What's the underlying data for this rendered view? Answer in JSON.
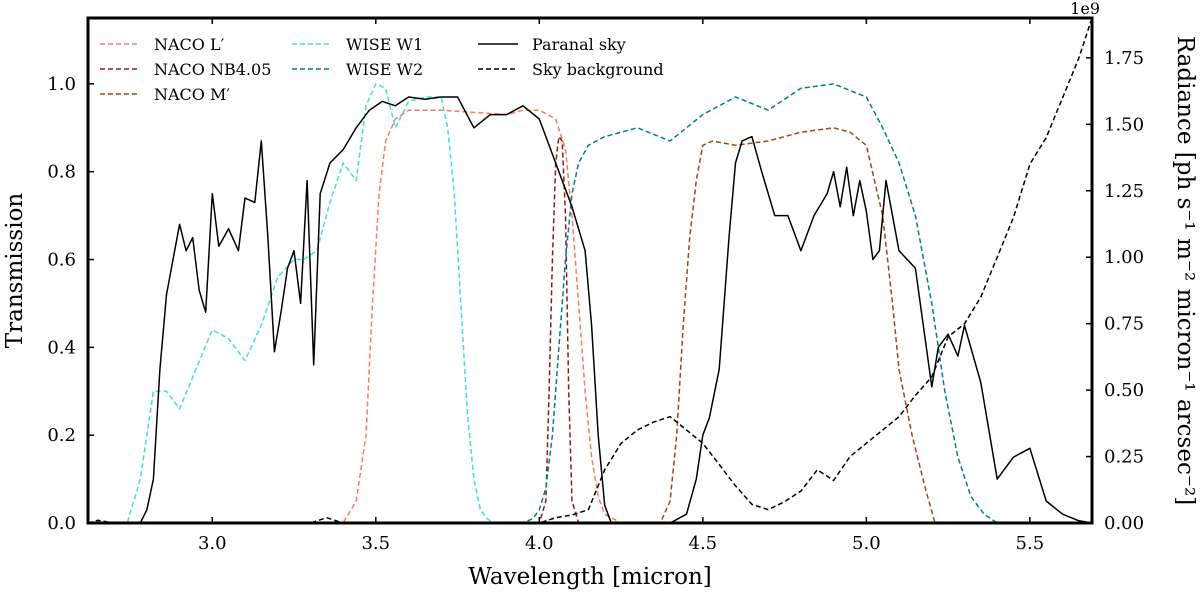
{
  "chart_data": {
    "type": "line",
    "title": "",
    "xlabel": "Wavelength [micron]",
    "ylabel": "Transmission",
    "y2label": "Radiance [ph s⁻¹ m⁻² micron⁻¹ arcsec⁻²]",
    "y2_offset_text": "1e9",
    "xlim": [
      2.62,
      5.69
    ],
    "ylim": [
      0,
      1.15
    ],
    "y2lim": [
      0,
      1.9
    ],
    "xticks": [
      3.0,
      3.5,
      4.0,
      4.5,
      5.0,
      5.5
    ],
    "xtick_labels": [
      "3.0",
      "3.5",
      "4.0",
      "4.5",
      "5.0",
      "5.5"
    ],
    "yticks": [
      0.0,
      0.2,
      0.4,
      0.6,
      0.8,
      1.0
    ],
    "ytick_labels": [
      "0.0",
      "0.2",
      "0.4",
      "0.6",
      "0.8",
      "1.0"
    ],
    "y2ticks": [
      0.0,
      0.25,
      0.5,
      0.75,
      1.0,
      1.25,
      1.5,
      1.75
    ],
    "y2tick_labels": [
      "0.00",
      "0.25",
      "0.50",
      "0.75",
      "1.00",
      "1.25",
      "1.50",
      "1.75"
    ],
    "grid": false,
    "legend_position": "top-left",
    "series": [
      {
        "name": "NACO L′",
        "axis": "left",
        "color": "#fa7a5c",
        "dash": "dashed",
        "x": [
          2.62,
          3.4,
          3.44,
          3.47,
          3.49,
          3.51,
          3.53,
          3.56,
          3.6,
          3.7,
          3.8,
          3.9,
          3.95,
          4.0,
          4.05,
          4.08,
          4.1,
          4.12,
          4.14,
          4.16,
          4.18,
          4.2,
          4.25,
          5.69
        ],
        "y": [
          0.0,
          0.0,
          0.05,
          0.2,
          0.5,
          0.75,
          0.87,
          0.92,
          0.94,
          0.94,
          0.935,
          0.93,
          0.94,
          0.94,
          0.92,
          0.85,
          0.7,
          0.5,
          0.3,
          0.15,
          0.06,
          0.02,
          0.0,
          0.0
        ]
      },
      {
        "name": "NACO NB4.05",
        "axis": "left",
        "color": "#8b1a1a",
        "dash": "dashed",
        "x": [
          2.62,
          4.0,
          4.02,
          4.03,
          4.04,
          4.05,
          4.06,
          4.07,
          4.08,
          4.09,
          4.1,
          4.12,
          5.69
        ],
        "y": [
          0.0,
          0.0,
          0.05,
          0.3,
          0.6,
          0.82,
          0.88,
          0.87,
          0.7,
          0.3,
          0.05,
          0.0,
          0.0
        ]
      },
      {
        "name": "NACO M′",
        "axis": "left",
        "color": "#a0451c",
        "dash": "dashed",
        "x": [
          2.62,
          4.37,
          4.4,
          4.42,
          4.44,
          4.46,
          4.48,
          4.5,
          4.53,
          4.6,
          4.7,
          4.8,
          4.9,
          4.95,
          5.0,
          5.05,
          5.08,
          5.1,
          5.14,
          5.18,
          5.21,
          5.69
        ],
        "y": [
          0.0,
          0.0,
          0.05,
          0.2,
          0.45,
          0.65,
          0.78,
          0.86,
          0.87,
          0.86,
          0.87,
          0.89,
          0.9,
          0.89,
          0.86,
          0.7,
          0.5,
          0.35,
          0.2,
          0.08,
          0.0,
          0.0
        ]
      },
      {
        "name": "WISE W1",
        "axis": "left",
        "color": "#40e0d0",
        "dash": "dashed",
        "x": [
          2.62,
          2.74,
          2.78,
          2.82,
          2.86,
          2.9,
          2.95,
          3.0,
          3.05,
          3.1,
          3.15,
          3.2,
          3.25,
          3.28,
          3.32,
          3.36,
          3.4,
          3.44,
          3.47,
          3.5,
          3.53,
          3.56,
          3.6,
          3.65,
          3.7,
          3.72,
          3.74,
          3.76,
          3.78,
          3.8,
          3.82,
          3.84,
          3.86,
          3.9,
          5.69
        ],
        "y": [
          0.0,
          0.0,
          0.1,
          0.3,
          0.3,
          0.26,
          0.35,
          0.44,
          0.42,
          0.37,
          0.45,
          0.56,
          0.6,
          0.6,
          0.62,
          0.73,
          0.82,
          0.78,
          0.95,
          1.0,
          0.99,
          0.9,
          0.96,
          0.97,
          0.97,
          0.9,
          0.75,
          0.5,
          0.25,
          0.1,
          0.03,
          0.01,
          0.0,
          0.0,
          0.0
        ]
      },
      {
        "name": "WISE W2",
        "axis": "left",
        "color": "#008080",
        "dash": "dashed",
        "x": [
          2.62,
          3.95,
          3.98,
          4.0,
          4.02,
          4.04,
          4.06,
          4.08,
          4.1,
          4.12,
          4.15,
          4.2,
          4.3,
          4.4,
          4.5,
          4.6,
          4.7,
          4.8,
          4.9,
          5.0,
          5.05,
          5.1,
          5.15,
          5.2,
          5.24,
          5.28,
          5.32,
          5.36,
          5.4,
          5.69
        ],
        "y": [
          0.0,
          0.0,
          0.01,
          0.03,
          0.08,
          0.2,
          0.4,
          0.6,
          0.75,
          0.82,
          0.86,
          0.88,
          0.9,
          0.87,
          0.93,
          0.97,
          0.94,
          0.99,
          1.0,
          0.97,
          0.9,
          0.82,
          0.7,
          0.5,
          0.3,
          0.15,
          0.06,
          0.02,
          0.0,
          0.0
        ]
      },
      {
        "name": "Paranal sky",
        "axis": "left",
        "color": "#000000",
        "dash": "solid",
        "x": [
          2.62,
          2.78,
          2.8,
          2.82,
          2.84,
          2.86,
          2.88,
          2.9,
          2.92,
          2.94,
          2.96,
          2.98,
          3.0,
          3.02,
          3.05,
          3.08,
          3.1,
          3.13,
          3.15,
          3.17,
          3.19,
          3.21,
          3.23,
          3.25,
          3.27,
          3.29,
          3.31,
          3.33,
          3.36,
          3.4,
          3.44,
          3.48,
          3.52,
          3.56,
          3.6,
          3.65,
          3.7,
          3.75,
          3.8,
          3.85,
          3.9,
          3.95,
          4.0,
          4.03,
          4.06,
          4.1,
          4.14,
          4.16,
          4.18,
          4.2,
          4.22,
          4.24,
          4.4,
          4.45,
          4.48,
          4.5,
          4.52,
          4.55,
          4.58,
          4.6,
          4.62,
          4.65,
          4.68,
          4.72,
          4.76,
          4.8,
          4.84,
          4.88,
          4.9,
          4.92,
          4.94,
          4.96,
          4.98,
          5.0,
          5.02,
          5.04,
          5.06,
          5.1,
          5.15,
          5.2,
          5.22,
          5.25,
          5.28,
          5.3,
          5.35,
          5.4,
          5.45,
          5.5,
          5.55,
          5.6,
          5.65,
          5.69
        ],
        "y": [
          0.0,
          0.0,
          0.03,
          0.1,
          0.35,
          0.52,
          0.6,
          0.68,
          0.62,
          0.65,
          0.53,
          0.48,
          0.75,
          0.63,
          0.67,
          0.62,
          0.74,
          0.73,
          0.87,
          0.65,
          0.39,
          0.48,
          0.58,
          0.62,
          0.5,
          0.78,
          0.36,
          0.75,
          0.82,
          0.85,
          0.9,
          0.94,
          0.96,
          0.95,
          0.97,
          0.965,
          0.97,
          0.97,
          0.9,
          0.93,
          0.93,
          0.95,
          0.92,
          0.86,
          0.8,
          0.72,
          0.62,
          0.45,
          0.2,
          0.04,
          0.0,
          0.0,
          0.0,
          0.02,
          0.1,
          0.2,
          0.24,
          0.35,
          0.65,
          0.82,
          0.87,
          0.88,
          0.8,
          0.7,
          0.7,
          0.62,
          0.7,
          0.75,
          0.8,
          0.72,
          0.81,
          0.7,
          0.78,
          0.71,
          0.6,
          0.62,
          0.78,
          0.62,
          0.58,
          0.31,
          0.4,
          0.43,
          0.38,
          0.45,
          0.32,
          0.1,
          0.15,
          0.17,
          0.05,
          0.02,
          0.005,
          0.0
        ]
      },
      {
        "name": "Sky background",
        "axis": "right",
        "color": "#000000",
        "dash": "dashed",
        "x": [
          2.62,
          2.65,
          2.7,
          2.75,
          2.8,
          2.85,
          2.9,
          3.0,
          3.1,
          3.2,
          3.3,
          3.35,
          3.4,
          3.5,
          3.6,
          3.7,
          3.8,
          3.9,
          4.0,
          4.05,
          4.1,
          4.15,
          4.2,
          4.25,
          4.3,
          4.35,
          4.4,
          4.45,
          4.5,
          4.55,
          4.6,
          4.65,
          4.7,
          4.75,
          4.8,
          4.85,
          4.9,
          4.95,
          5.0,
          5.05,
          5.1,
          5.15,
          5.2,
          5.25,
          5.3,
          5.35,
          5.4,
          5.45,
          5.5,
          5.55,
          5.6,
          5.65,
          5.69
        ],
        "y": [
          0.0,
          0.01,
          0.0,
          0.0,
          0.0,
          0.0,
          0.0,
          0.0,
          0.0,
          0.0,
          0.0,
          0.02,
          0.0,
          0.0,
          0.0,
          0.0,
          0.0,
          0.0,
          0.0,
          0.02,
          0.03,
          0.05,
          0.2,
          0.3,
          0.35,
          0.38,
          0.4,
          0.35,
          0.3,
          0.22,
          0.14,
          0.07,
          0.05,
          0.08,
          0.12,
          0.2,
          0.16,
          0.25,
          0.3,
          0.35,
          0.4,
          0.48,
          0.55,
          0.7,
          0.75,
          0.85,
          1.0,
          1.15,
          1.35,
          1.45,
          1.6,
          1.75,
          1.9
        ]
      }
    ]
  }
}
